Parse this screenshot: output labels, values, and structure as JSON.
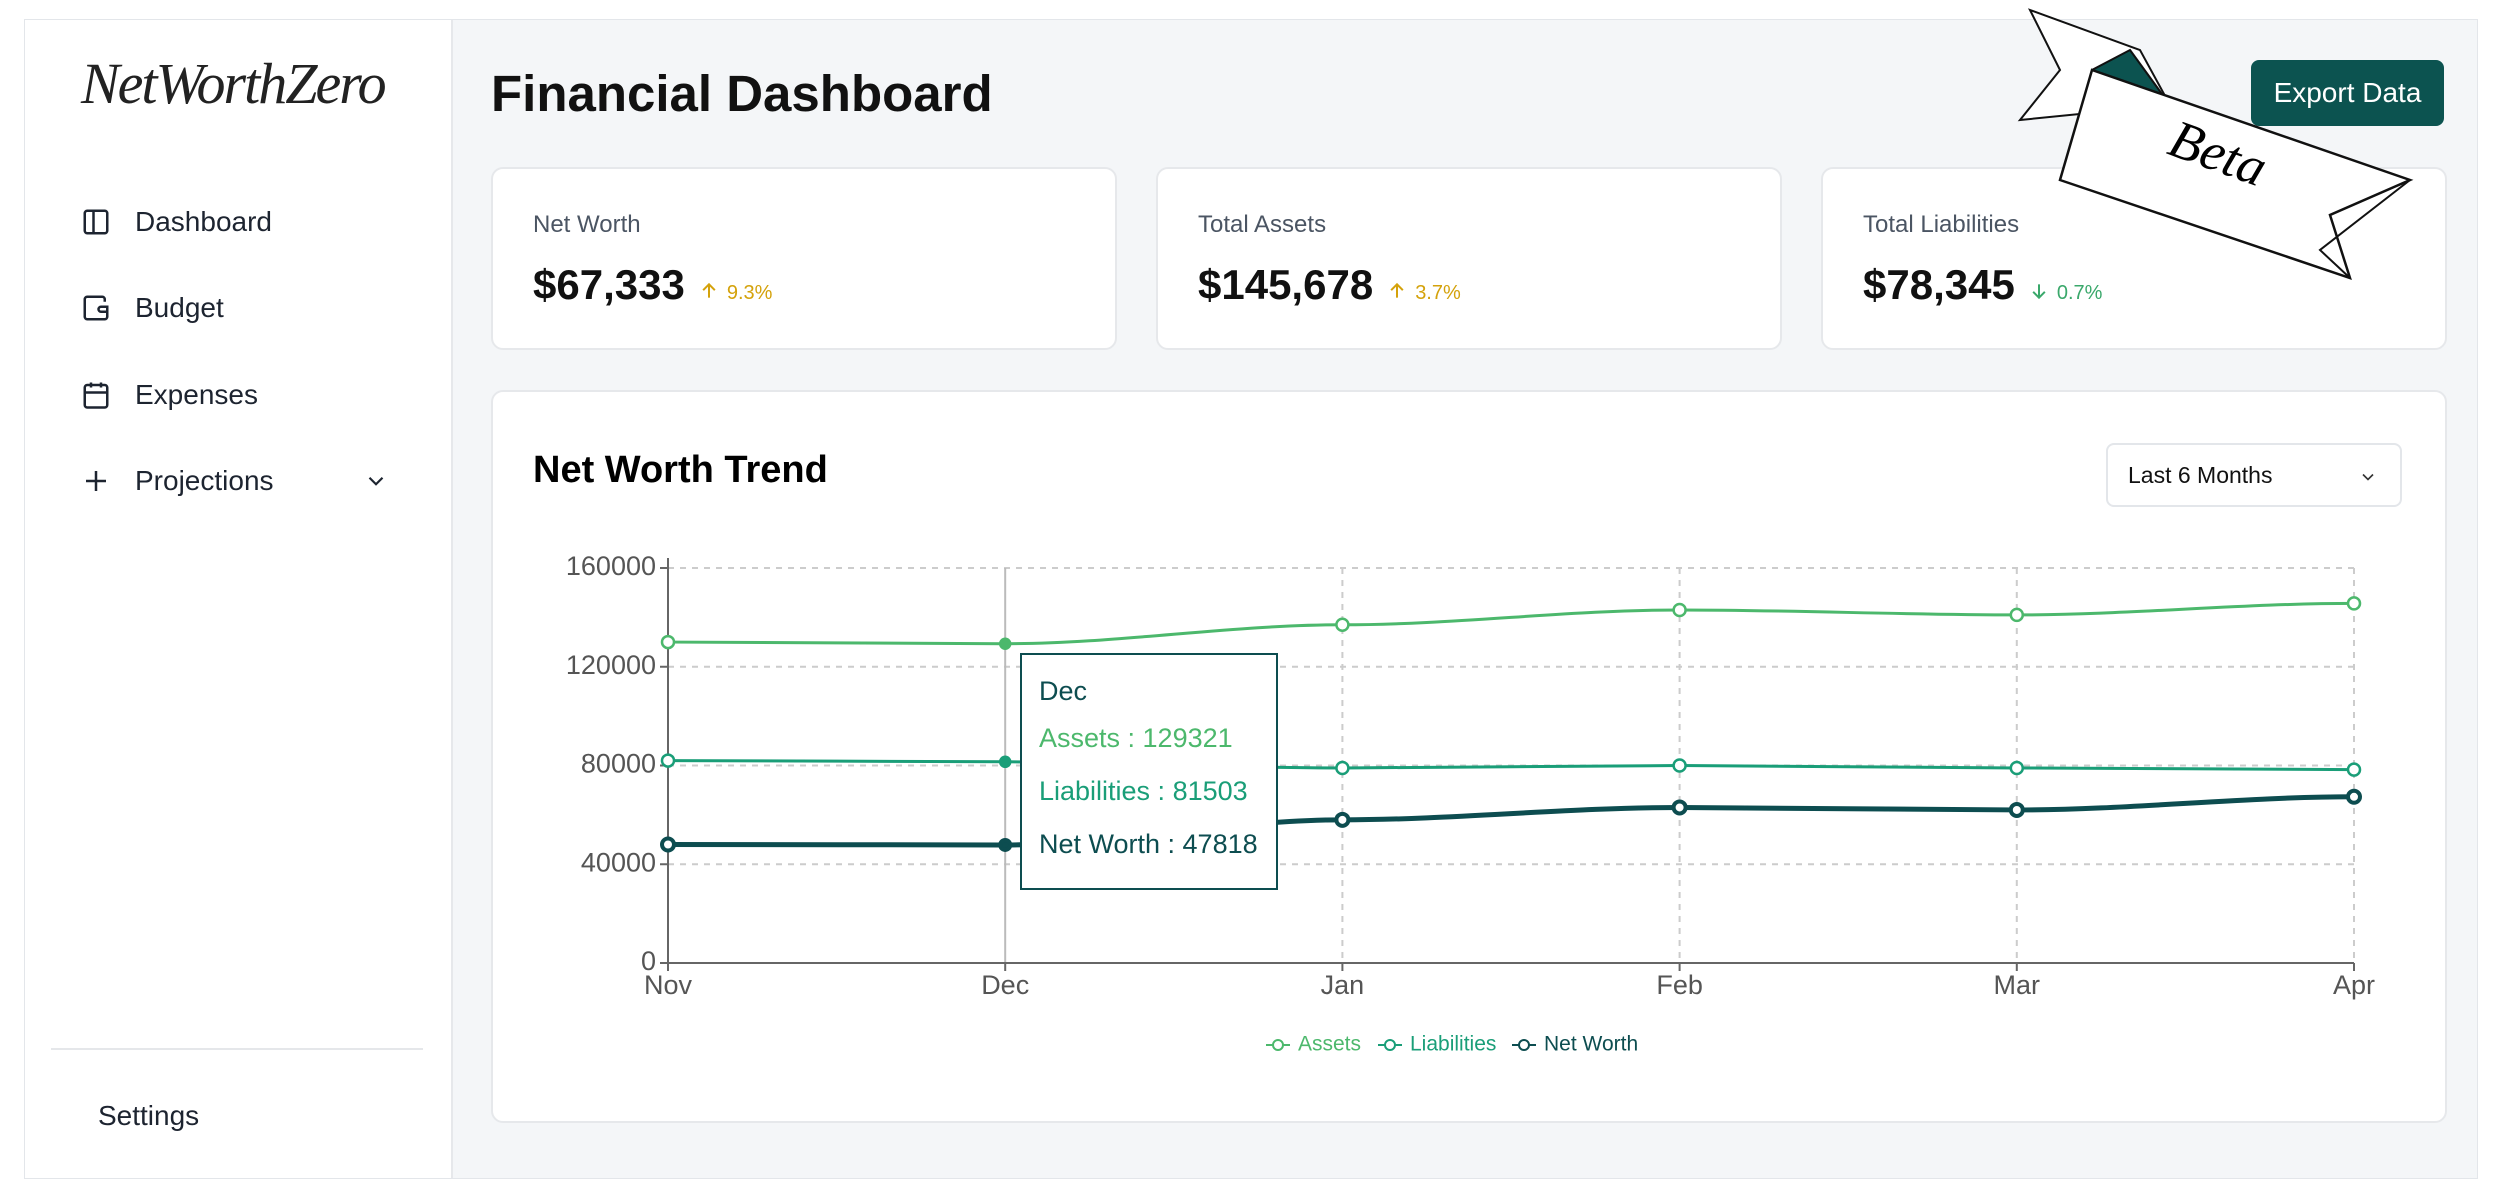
{
  "sidebar": {
    "logo": "NetWorthZero",
    "nav": [
      "Dashboard",
      "Budget",
      "Expenses",
      "Projections"
    ],
    "settings": "Settings"
  },
  "header": {
    "title": "Financial Dashboard",
    "export_button": "Export Data",
    "badge": "Beta"
  },
  "cards": [
    {
      "label": "Net Worth",
      "value": "$67,333",
      "change": "9.3%",
      "direction": "up"
    },
    {
      "label": "Total Assets",
      "value": "$145,678",
      "change": "3.7%",
      "direction": "up"
    },
    {
      "label": "Total Liabilities",
      "value": "$78,345",
      "change": "0.7%",
      "direction": "down"
    }
  ],
  "chart": {
    "type": "line",
    "title": "Net Worth Trend",
    "range_select": "Last 6 Months",
    "categories": [
      "Nov",
      "Dec",
      "Jan",
      "Feb",
      "Mar",
      "Apr"
    ],
    "series": [
      {
        "name": "Assets",
        "color": "#4cb86c",
        "values": [
          130000,
          129321,
          137000,
          143000,
          141000,
          145678
        ]
      },
      {
        "name": "Liabilities",
        "color": "#1a9e78",
        "values": [
          82000,
          81503,
          79000,
          80000,
          79000,
          78345
        ]
      },
      {
        "name": "Net Worth",
        "color": "#0d4d50",
        "values": [
          48000,
          47818,
          58000,
          63000,
          62000,
          67333
        ]
      }
    ],
    "ylim": [
      0,
      160000
    ],
    "yticks": [
      0,
      40000,
      80000,
      120000,
      160000
    ],
    "grid": true,
    "tooltip": {
      "category_index": 1,
      "title": "Dec",
      "rows": [
        "Assets : 129321",
        "Liabilities : 81503",
        "Net Worth : 47818"
      ]
    }
  }
}
